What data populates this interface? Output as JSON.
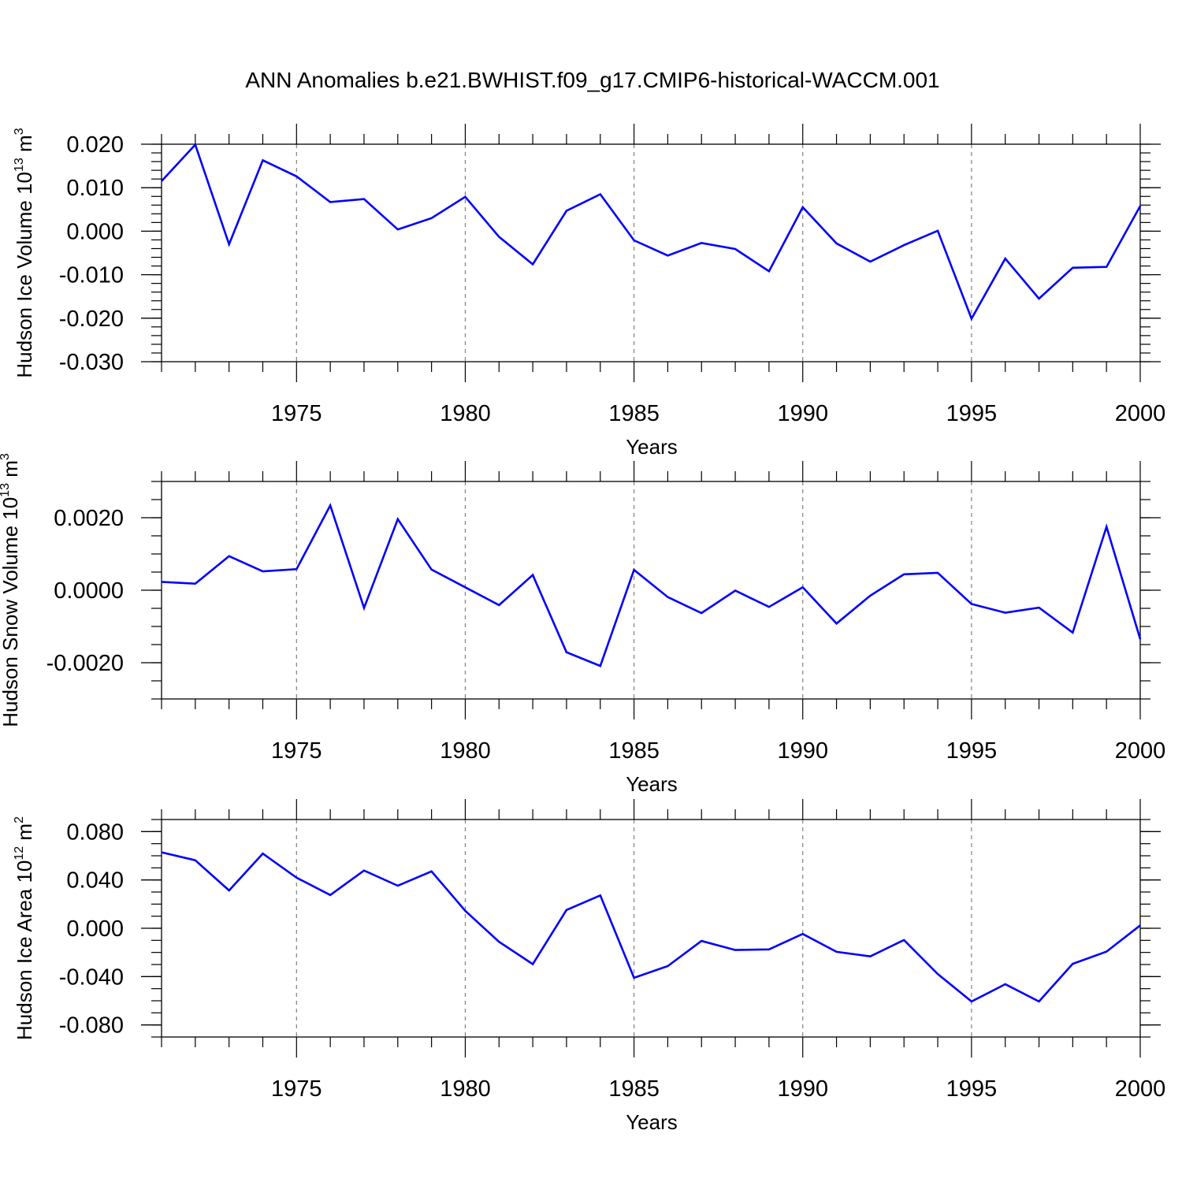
{
  "title": "ANN Anomalies b.e21.BWHIST.f09_g17.CMIP6-historical-WACCM.001",
  "colors": {
    "line": "#0000ff",
    "axis": "#000000",
    "grid": "#808080"
  },
  "chart_data": [
    {
      "type": "line",
      "ylabel_text": "Hudson Ice Volume 10",
      "ylabel_exp": "13",
      "ylabel_unit": " m",
      "ylabel_unit_exp": "3",
      "xlabel": "Years",
      "xlim": [
        1971,
        2000
      ],
      "ylim": [
        -0.03,
        0.02
      ],
      "yticks": [
        0.02,
        0.01,
        0.0,
        -0.01,
        -0.02,
        -0.03
      ],
      "ytick_labels": [
        "0.020",
        "0.010",
        "0.000",
        "-0.010",
        "-0.020",
        "-0.030"
      ],
      "ymajor_step": 0.01,
      "yminor_step": 0.002,
      "xticks": [
        1975,
        1980,
        1985,
        1990,
        1995,
        2000
      ],
      "xtick_labels": [
        "1975",
        "1980",
        "1985",
        "1990",
        "1995",
        "2000"
      ],
      "grid_x": [
        1975,
        1980,
        1985,
        1990,
        1995
      ],
      "x": [
        1971,
        1972,
        1973,
        1974,
        1975,
        1976,
        1977,
        1978,
        1979,
        1980,
        1981,
        1982,
        1983,
        1984,
        1985,
        1986,
        1987,
        1988,
        1989,
        1990,
        1991,
        1992,
        1993,
        1994,
        1995,
        1996,
        1997,
        1998,
        1999,
        2000
      ],
      "values": [
        0.0115,
        0.0199,
        -0.003,
        0.0163,
        0.0126,
        0.0067,
        0.0074,
        0.0004,
        0.003,
        0.0079,
        -0.0013,
        -0.0076,
        0.0047,
        0.0085,
        -0.0021,
        -0.0056,
        -0.0027,
        -0.0041,
        -0.0092,
        0.0055,
        -0.0028,
        -0.007,
        -0.0032,
        0.0001,
        -0.0201,
        -0.0063,
        -0.0155,
        -0.0084,
        -0.0082,
        0.0058
      ]
    },
    {
      "type": "line",
      "ylabel_text": "Hudson Snow Volume 10",
      "ylabel_exp": "13",
      "ylabel_unit": " m",
      "ylabel_unit_exp": "3",
      "xlabel": "Years",
      "xlim": [
        1971,
        2000
      ],
      "ylim": [
        -0.003,
        0.003
      ],
      "yticks": [
        0.002,
        0.0,
        -0.002
      ],
      "ytick_labels": [
        "0.0020",
        "0.0000",
        "-0.0020"
      ],
      "ymajor_step": 0.002,
      "yminor_step": 0.0005,
      "xticks": [
        1975,
        1980,
        1985,
        1990,
        1995,
        2000
      ],
      "xtick_labels": [
        "1975",
        "1980",
        "1985",
        "1990",
        "1995",
        "2000"
      ],
      "grid_x": [
        1975,
        1980,
        1985,
        1990,
        1995
      ],
      "x": [
        1971,
        1972,
        1973,
        1974,
        1975,
        1976,
        1977,
        1978,
        1979,
        1980,
        1981,
        1982,
        1983,
        1984,
        1985,
        1986,
        1987,
        1988,
        1989,
        1990,
        1991,
        1992,
        1993,
        1994,
        1995,
        1996,
        1997,
        1998,
        1999,
        2000
      ],
      "values": [
        0.00023,
        0.00018,
        0.00094,
        0.00052,
        0.00058,
        0.00234,
        -0.00049,
        0.00196,
        0.00057,
        8e-05,
        -0.00041,
        0.00042,
        -0.00171,
        -0.00209,
        0.00056,
        -0.00019,
        -0.00063,
        -1e-05,
        -0.00046,
        8e-05,
        -0.00092,
        -0.00015,
        0.00044,
        0.00048,
        -0.00038,
        -0.00062,
        -0.00048,
        -0.00117,
        0.00175,
        -0.00135
      ]
    },
    {
      "type": "line",
      "ylabel_text": "Hudson Ice Area 10",
      "ylabel_exp": "12",
      "ylabel_unit": " m",
      "ylabel_unit_exp": "2",
      "xlabel": "Years",
      "xlim": [
        1971,
        2000
      ],
      "ylim": [
        -0.09,
        0.09
      ],
      "yticks": [
        0.08,
        0.04,
        0.0,
        -0.04,
        -0.08
      ],
      "ytick_labels": [
        "0.080",
        "0.040",
        "0.000",
        "-0.040",
        "-0.080"
      ],
      "ymajor_step": 0.04,
      "yminor_step": 0.01,
      "xticks": [
        1975,
        1980,
        1985,
        1990,
        1995,
        2000
      ],
      "xtick_labels": [
        "1975",
        "1980",
        "1985",
        "1990",
        "1995",
        "2000"
      ],
      "grid_x": [
        1975,
        1980,
        1985,
        1990,
        1995
      ],
      "x": [
        1971,
        1972,
        1973,
        1974,
        1975,
        1976,
        1977,
        1978,
        1979,
        1980,
        1981,
        1982,
        1983,
        1984,
        1985,
        1986,
        1987,
        1988,
        1989,
        1990,
        1991,
        1992,
        1993,
        1994,
        1995,
        1996,
        1997,
        1998,
        1999,
        2000
      ],
      "values": [
        0.0629,
        0.0563,
        0.0313,
        0.0618,
        0.0419,
        0.0275,
        0.0478,
        0.0352,
        0.0471,
        0.0145,
        -0.0112,
        -0.0297,
        0.0151,
        0.0272,
        -0.041,
        -0.0313,
        -0.0105,
        -0.018,
        -0.0175,
        -0.0047,
        -0.0195,
        -0.0233,
        -0.0097,
        -0.0378,
        -0.0606,
        -0.0463,
        -0.0606,
        -0.0294,
        -0.0193,
        0.0024
      ]
    }
  ]
}
